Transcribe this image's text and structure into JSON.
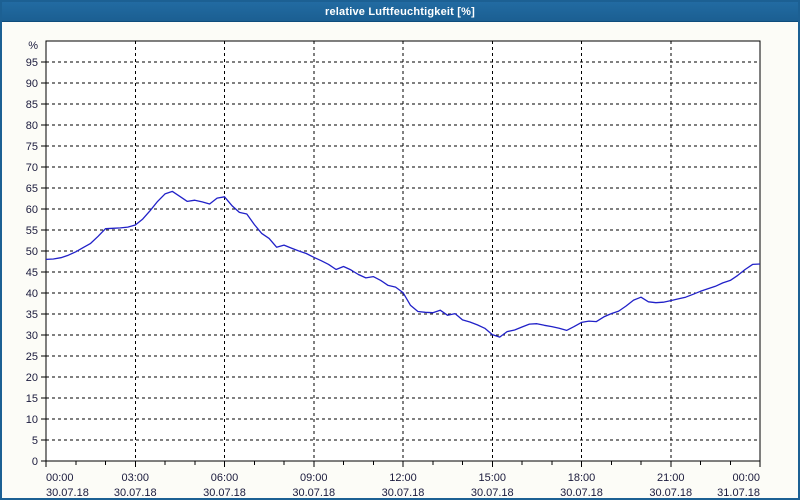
{
  "window": {
    "title": "relative Luftfeuchtigkeit [%]"
  },
  "colors": {
    "titlebar_bg": "#1d6396",
    "titlebar_text": "#ffffff",
    "window_border": "#1c6093",
    "window_bg": "#fcfcf7",
    "plot_bg": "#ffffff",
    "axis": "#000000",
    "grid": "#000000",
    "line": "#2121c8",
    "tick_text": "#1a1a3c"
  },
  "chart_data": {
    "type": "line",
    "title": "relative Luftfeuchtigkeit [%]",
    "ylabel": "%",
    "xlabel": "",
    "ylim": [
      0,
      100
    ],
    "grid": "dashed, horizontal every 5 %, vertical every 3 h",
    "legend_position": "none",
    "y_ticks": [
      0,
      5,
      10,
      15,
      20,
      25,
      30,
      35,
      40,
      45,
      50,
      55,
      60,
      65,
      70,
      75,
      80,
      85,
      90,
      95
    ],
    "x_ticks": [
      {
        "h": 0,
        "time": "00:00",
        "date": "30.07.18"
      },
      {
        "h": 3,
        "time": "03:00",
        "date": "30.07.18"
      },
      {
        "h": 6,
        "time": "06:00",
        "date": "30.07.18"
      },
      {
        "h": 9,
        "time": "09:00",
        "date": "30.07.18"
      },
      {
        "h": 12,
        "time": "12:00",
        "date": "30.07.18"
      },
      {
        "h": 15,
        "time": "15:00",
        "date": "30.07.18"
      },
      {
        "h": 18,
        "time": "18:00",
        "date": "30.07.18"
      },
      {
        "h": 21,
        "time": "21:00",
        "date": "30.07.18"
      },
      {
        "h": 24,
        "time": "00:00",
        "date": "31.07.18"
      }
    ],
    "minor_tick_every_hours": 1,
    "x_span_hours": 24,
    "x_step_hours": 0.25,
    "series": [
      {
        "name": "relative Luftfeuchtigkeit",
        "values": [
          48.0,
          48.1,
          48.4,
          49.0,
          49.8,
          50.8,
          51.8,
          53.5,
          55.3,
          55.4,
          55.5,
          55.7,
          56.2,
          57.6,
          59.6,
          61.8,
          63.6,
          64.2,
          63.0,
          61.8,
          62.1,
          61.7,
          61.2,
          62.6,
          62.9,
          60.8,
          59.2,
          58.8,
          56.3,
          54.2,
          53.0,
          50.9,
          51.4,
          50.7,
          50.0,
          49.4,
          48.5,
          47.7,
          46.8,
          45.6,
          46.3,
          45.5,
          44.4,
          43.6,
          43.9,
          43.0,
          41.8,
          41.4,
          40.1,
          37.1,
          35.6,
          35.4,
          35.3,
          35.9,
          34.7,
          35.1,
          33.6,
          33.1,
          32.4,
          31.6,
          30.1,
          29.5,
          30.8,
          31.2,
          31.9,
          32.6,
          32.7,
          32.3,
          32.0,
          31.6,
          31.1,
          32.0,
          33.0,
          33.3,
          33.2,
          34.3,
          35.1,
          35.7,
          36.9,
          38.3,
          39.0,
          37.9,
          37.7,
          37.8,
          38.2,
          38.6,
          39.0,
          39.7,
          40.4,
          41.0,
          41.6,
          42.4,
          43.0,
          44.2,
          45.6,
          46.8,
          46.9
        ]
      }
    ]
  }
}
